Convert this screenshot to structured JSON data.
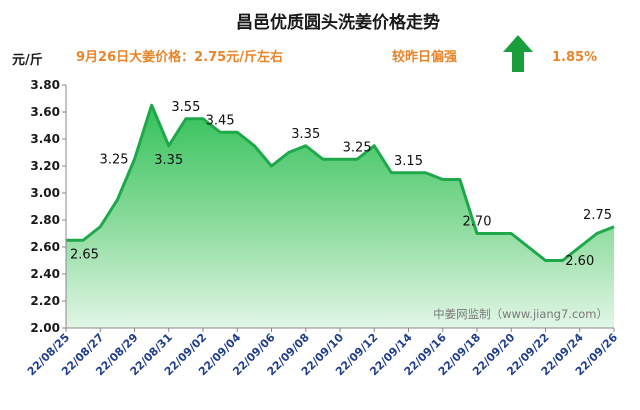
{
  "chart_data": {
    "type": "area",
    "title": "昌邑优质圆头洗姜价格走势",
    "ylabel": "元/斤",
    "ylim": [
      2.0,
      3.8
    ],
    "yticks": [
      "2.00",
      "2.20",
      "2.40",
      "2.60",
      "2.80",
      "3.00",
      "3.20",
      "3.40",
      "3.60",
      "3.80"
    ],
    "grid": false,
    "xticks": [
      "22/08/25",
      "22/08/27",
      "22/08/29",
      "22/08/31",
      "22/09/02",
      "22/09/04",
      "22/09/06",
      "22/09/08",
      "22/09/10",
      "22/09/12",
      "22/09/14",
      "22/09/16",
      "22/09/18",
      "22/09/20",
      "22/09/22",
      "22/09/24",
      "22/09/26"
    ],
    "series": [
      {
        "values": [
          2.65,
          2.65,
          2.75,
          2.95,
          3.25,
          3.65,
          3.35,
          3.55,
          3.55,
          3.45,
          3.45,
          3.35,
          3.2,
          3.3,
          3.35,
          3.25,
          3.25,
          3.25,
          3.35,
          3.15,
          3.15,
          3.15,
          3.1,
          3.1,
          2.7,
          2.7,
          2.7,
          2.6,
          2.5,
          2.5,
          2.6,
          2.7,
          2.75
        ],
        "color": "#1ea84a"
      }
    ],
    "data_labels": [
      {
        "index": 0,
        "text": "2.65",
        "pos": "below"
      },
      {
        "index": 4,
        "text": "3.25",
        "pos": "left"
      },
      {
        "index": 6,
        "text": "3.35",
        "pos": "below"
      },
      {
        "index": 7,
        "text": "3.55",
        "pos": "above"
      },
      {
        "index": 9,
        "text": "3.45",
        "pos": "above"
      },
      {
        "index": 14,
        "text": "3.35",
        "pos": "above"
      },
      {
        "index": 17,
        "text": "3.25",
        "pos": "above"
      },
      {
        "index": 20,
        "text": "3.15",
        "pos": "above"
      },
      {
        "index": 24,
        "text": "2.70",
        "pos": "above"
      },
      {
        "index": 30,
        "text": "2.60",
        "pos": "below"
      },
      {
        "index": 32,
        "text": "2.75",
        "pos": "above"
      }
    ]
  },
  "info": {
    "price_text": "9月26日大姜价格：2.75元/斤左右",
    "compare_text": "较昨日偏强",
    "change_text": "1.85%",
    "arrow_icon": "up-arrow-icon",
    "arrow_color": "#1a9e3c",
    "accent_color": "#e8852a"
  },
  "watermark": "中姜网监制（www.jiang7.com）"
}
